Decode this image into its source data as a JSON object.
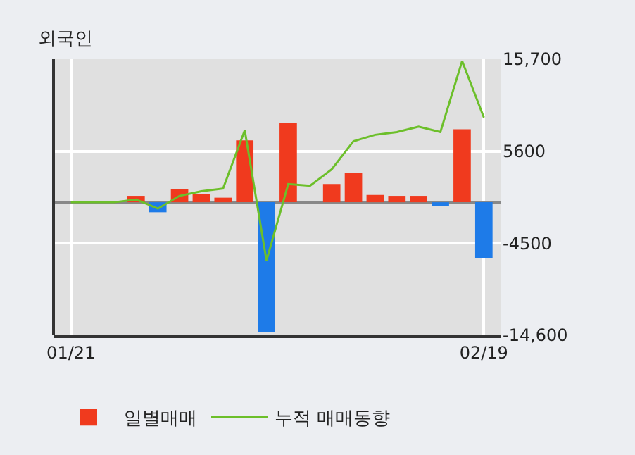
{
  "chart_data": {
    "type": "bar",
    "title": "외국인",
    "categories": [
      "01/21",
      null,
      null,
      null,
      null,
      null,
      null,
      null,
      null,
      null,
      null,
      null,
      null,
      null,
      null,
      null,
      null,
      null,
      null,
      "02/19"
    ],
    "series": [
      {
        "name": "일별매매",
        "values": [
          0,
          0,
          0,
          700,
          -1100,
          1400,
          900,
          500,
          6800,
          -14300,
          8700,
          0,
          2000,
          3200,
          800,
          700,
          700,
          -400,
          8000,
          -6100
        ],
        "colors": [
          "#f03a1e",
          "#f03a1e",
          "#f03a1e",
          "#f03a1e",
          "#1e7be8",
          "#f03a1e",
          "#f03a1e",
          "#f03a1e",
          "#f03a1e",
          "#1e7be8",
          "#f03a1e",
          "#f03a1e",
          "#f03a1e",
          "#f03a1e",
          "#f03a1e",
          "#f03a1e",
          "#f03a1e",
          "#1e7be8",
          "#f03a1e",
          "#1e7be8"
        ]
      },
      {
        "name": "누적 매매동향",
        "type": "line",
        "color": "#6cbf2a",
        "values": [
          0,
          0,
          0,
          300,
          -700,
          700,
          1200,
          1500,
          7900,
          -6400,
          2000,
          1800,
          3600,
          6700,
          7400,
          7700,
          8300,
          7700,
          15500,
          9300
        ]
      }
    ],
    "ylim": [
      -14600,
      15700
    ],
    "yticks": [
      {
        "value": 15700,
        "label": "15,700"
      },
      5600,
      -4500,
      {
        "value": -14600,
        "label": "-14,600"
      }
    ],
    "grid": true,
    "legend": "bottom"
  }
}
